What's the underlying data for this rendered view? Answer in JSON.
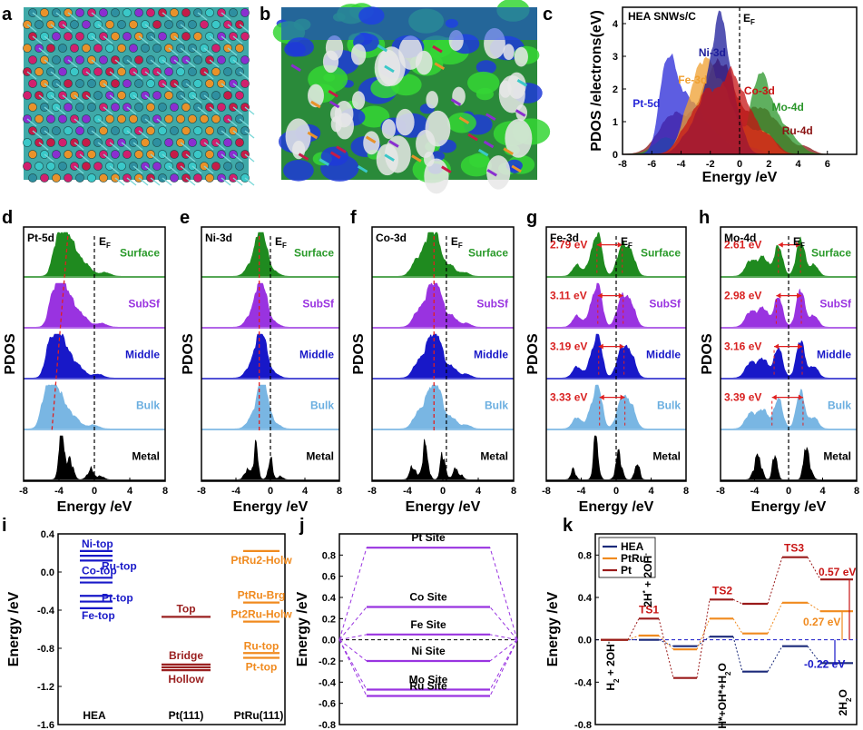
{
  "panels": {
    "a": "a",
    "b": "b",
    "c": "c",
    "d": "d",
    "e": "e",
    "f": "f",
    "g": "g",
    "h": "h",
    "i": "i",
    "j": "j",
    "k": "k"
  },
  "colors": {
    "pt": "#2727d8",
    "ni": "#1b1b9a",
    "fe": "#f0a030",
    "co": "#c81414",
    "mo": "#2a962a",
    "ru": "#8a1212",
    "surface": "#1f8a1f",
    "subsf": "#9933e0",
    "middle": "#1818c8",
    "bulk": "#6aaee0",
    "metal": "#000000",
    "hea": "#1b2a7a",
    "ptru": "#f08a1e",
    "ptk": "#9a1a1a",
    "jline": "#9933e0"
  },
  "chart_c": {
    "type": "area",
    "title": "HEA SNWs/C",
    "ef_label": "E",
    "ef_sub": "F",
    "xlabel": "Energy /eV",
    "ylabel": "PDOS /electrons(eV)",
    "xlim": [
      -8,
      8
    ],
    "ylim": [
      0,
      4.5
    ],
    "xticks": [
      "-8",
      "-6",
      "-4",
      "-2",
      "0",
      "2",
      "4",
      "6"
    ],
    "yticks": [
      "0",
      "1",
      "2",
      "3",
      "4"
    ],
    "series_labels": [
      "Ni-3d",
      "Fe-3d",
      "Pt-5d",
      "Co-3d",
      "Mo-4d",
      "Ru-4d"
    ]
  },
  "pdos_panels": [
    {
      "id": "d",
      "title": "Pt-5d",
      "layers": [
        "Surface",
        "SubSf",
        "Middle",
        "Bulk",
        "Metal"
      ],
      "gaps": []
    },
    {
      "id": "e",
      "title": "Ni-3d",
      "layers": [
        "Surface",
        "SubSf",
        "Middle",
        "Bulk",
        "Metal"
      ],
      "gaps": []
    },
    {
      "id": "f",
      "title": "Co-3d",
      "layers": [
        "Surface",
        "SubSf",
        "Middle",
        "Bulk",
        "Metal"
      ],
      "gaps": []
    },
    {
      "id": "g",
      "title": "Fe-3d",
      "layers": [
        "Surface",
        "SubSf",
        "Middle",
        "Bulk",
        "Metal"
      ],
      "gaps": [
        "2.79 eV",
        "3.11 eV",
        "3.19 eV",
        "3.33 eV"
      ]
    },
    {
      "id": "h",
      "title": "Mo-4d",
      "layers": [
        "Surface",
        "SubSf",
        "Middle",
        "Bulk",
        "Metal"
      ],
      "gaps": [
        "2.61 eV",
        "2.98 eV",
        "3.16 eV",
        "3.39 eV"
      ]
    }
  ],
  "pdos_axis": {
    "xlabel": "Energy /eV",
    "ylabel": "PDOS",
    "ef_label": "E",
    "ef_sub": "F",
    "xticks": [
      "-8",
      "-4",
      "0",
      "4",
      "8"
    ],
    "xlim": [
      -8,
      8
    ]
  },
  "chart_data": [
    {
      "type": "table",
      "panel": "i",
      "ylabel": "Energy /eV",
      "ylim": [
        -1.6,
        0.4
      ],
      "yticks": [
        "0.4",
        "0.0",
        "-0.4",
        "-0.8",
        "-1.2",
        "-1.6"
      ],
      "groups": [
        "HEA",
        "Pt(111)",
        "PtRu(111)"
      ],
      "levels": [
        {
          "group": "HEA",
          "label": "Ni-top",
          "value": 0.22
        },
        {
          "group": "HEA",
          "label": "",
          "value": 0.17
        },
        {
          "group": "HEA",
          "label": "Ru-top",
          "value": 0.12
        },
        {
          "group": "HEA",
          "label": "Co-top",
          "value": -0.06
        },
        {
          "group": "HEA",
          "label": "",
          "value": -0.11
        },
        {
          "group": "HEA",
          "label": "Pt-top",
          "value": -0.25
        },
        {
          "group": "HEA",
          "label": "",
          "value": -0.31
        },
        {
          "group": "HEA",
          "label": "Fe-top",
          "value": -0.38
        },
        {
          "group": "Pt(111)",
          "label": "Top",
          "value": -0.47
        },
        {
          "group": "Pt(111)",
          "label": "Bridge",
          "value": -0.97
        },
        {
          "group": "Pt(111)",
          "label": "",
          "value": -1.0
        },
        {
          "group": "Pt(111)",
          "label": "Hollow",
          "value": -1.03
        },
        {
          "group": "PtRu(111)",
          "label": "PtRu2-Holw",
          "value": 0.22
        },
        {
          "group": "PtRu(111)",
          "label": "PtRu-Brg",
          "value": -0.32
        },
        {
          "group": "PtRu(111)",
          "label": "Pt2Ru-Holw",
          "value": -0.52
        },
        {
          "group": "PtRu(111)",
          "label": "Ru-top",
          "value": -0.85
        },
        {
          "group": "PtRu(111)",
          "label": "Pt-top",
          "value": -0.9
        }
      ]
    },
    {
      "type": "table",
      "panel": "j",
      "ylabel": "Energy /eV",
      "ylim": [
        -0.8,
        1.0
      ],
      "yticks": [
        "0.8",
        "0.6",
        "0.4",
        "0.2",
        "0.0",
        "-0.2",
        "-0.4",
        "-0.6",
        "-0.8"
      ],
      "levels": [
        {
          "label": "Pt Site",
          "value": 0.87
        },
        {
          "label": "Co Site",
          "value": 0.31
        },
        {
          "label": "Fe Site",
          "value": 0.05
        },
        {
          "label": "Ni Site",
          "value": -0.2
        },
        {
          "label": "Mo Site",
          "value": -0.47
        },
        {
          "label": "Ru Site",
          "value": -0.53
        }
      ]
    },
    {
      "type": "line",
      "panel": "k",
      "xlim": [
        0,
        10
      ],
      "ylim": [
        -0.8,
        1.0
      ],
      "yticks": [
        "0.8",
        "0.4",
        "0.0",
        "-0.4",
        "-0.8"
      ],
      "series": [
        {
          "name": "HEA",
          "values": [
            0.0,
            0.0,
            -0.06,
            0.03,
            -0.3,
            -0.06,
            -0.22
          ]
        },
        {
          "name": "PtRu",
          "values": [
            0.0,
            0.04,
            -0.09,
            0.2,
            0.06,
            0.35,
            0.27
          ]
        },
        {
          "name": "Pt",
          "values": [
            0.0,
            0.2,
            -0.36,
            0.38,
            0.34,
            0.78,
            0.57
          ]
        }
      ],
      "state_labels": [
        "H",
        "2",
        " + 2OH",
        "-",
        "2H",
        "*",
        " + 2OH",
        "-",
        "H*+OH*+H",
        "2",
        "O",
        "2H",
        "2",
        "O"
      ],
      "ts_labels": [
        "TS1",
        "TS2",
        "TS3"
      ],
      "annotations": [
        "0.57 eV",
        "0.27 eV",
        "-0.22 eV"
      ]
    }
  ]
}
